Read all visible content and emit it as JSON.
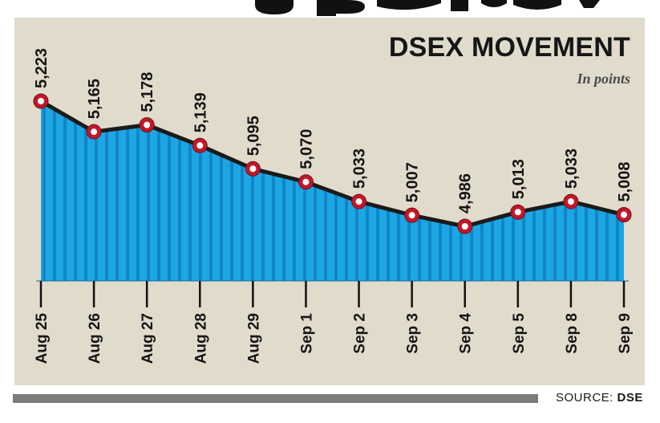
{
  "headline_fragment": "",
  "colors": {
    "panel_background": "#e0dbcb",
    "area_fill": "#1ca6e3",
    "area_stripe": "#0f86c9",
    "line": "#1a1a1a",
    "marker_fill": "#c0182a",
    "marker_center": "#ffffff"
  },
  "source": {
    "prefix": "SOURCE:",
    "name": "DSE"
  },
  "chart_data": {
    "type": "area",
    "title": "DSEX MOVEMENT",
    "subtitle": "In points",
    "xlabel": "",
    "ylabel": "",
    "categories": [
      "Aug 25",
      "Aug 26",
      "Aug 27",
      "Aug 28",
      "Aug 29",
      "Sep 1",
      "Sep 2",
      "Sep 3",
      "Sep 4",
      "Sep 5",
      "Sep 8",
      "Sep 9"
    ],
    "values": [
      5223,
      5165,
      5178,
      5139,
      5095,
      5070,
      5033,
      5007,
      4986,
      5013,
      5033,
      5008
    ],
    "value_labels": [
      "5,223",
      "5,165",
      "5,178",
      "5,139",
      "5,095",
      "5,070",
      "5,033",
      "5,007",
      "4,986",
      "5,013",
      "5,033",
      "5,008"
    ],
    "grid": false,
    "legend": "none"
  }
}
